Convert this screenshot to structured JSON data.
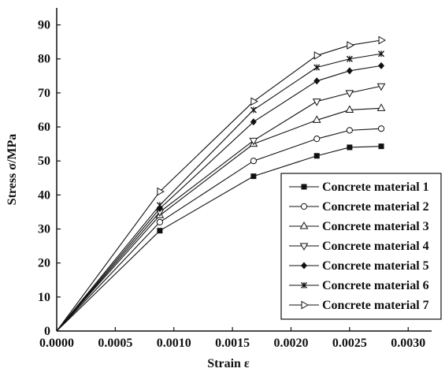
{
  "chart_data": {
    "type": "line",
    "title": "",
    "xlabel": "Strain ε",
    "ylabel": "Stress σ/MPa",
    "xlim": [
      0,
      0.0032
    ],
    "ylim": [
      0,
      95
    ],
    "x_ticks": [
      0,
      0.0005,
      0.001,
      0.0015,
      0.002,
      0.0025,
      0.003
    ],
    "x_tick_labels": [
      "0.0000",
      "0.0005",
      "0.0010",
      "0.0015",
      "0.0020",
      "0.0025",
      "0.0030"
    ],
    "y_ticks": [
      0,
      10,
      20,
      30,
      40,
      50,
      60,
      70,
      80,
      90
    ],
    "y_tick_labels": [
      "0",
      "10",
      "20",
      "30",
      "40",
      "50",
      "60",
      "70",
      "80",
      "90"
    ],
    "grid": false,
    "legend_position": "bottom-right",
    "x": [
      0,
      0.00088,
      0.00168,
      0.00222,
      0.0025,
      0.00277
    ],
    "series": [
      {
        "name": "Concrete material 1",
        "marker": "square-filled",
        "values": [
          0,
          29.5,
          45.5,
          51.5,
          54,
          54.3
        ]
      },
      {
        "name": "Concrete material 2",
        "marker": "circle-open",
        "values": [
          0,
          32,
          50,
          56.5,
          59,
          59.5
        ]
      },
      {
        "name": "Concrete material 3",
        "marker": "triangle-up-open",
        "values": [
          0,
          34,
          55,
          62,
          65,
          65.5
        ]
      },
      {
        "name": "Concrete material 4",
        "marker": "triangle-down-open",
        "values": [
          0,
          35,
          56,
          67.5,
          70,
          72
        ]
      },
      {
        "name": "Concrete material 5",
        "marker": "diamond-filled",
        "values": [
          0,
          36,
          61.5,
          73.5,
          76.5,
          78
        ]
      },
      {
        "name": "Concrete material 6",
        "marker": "asterisk",
        "values": [
          0,
          37,
          65,
          77.5,
          80,
          81.5
        ]
      },
      {
        "name": "Concrete material 7",
        "marker": "triangle-right-open",
        "values": [
          0,
          41,
          67.5,
          81,
          84,
          85.5
        ]
      }
    ]
  }
}
